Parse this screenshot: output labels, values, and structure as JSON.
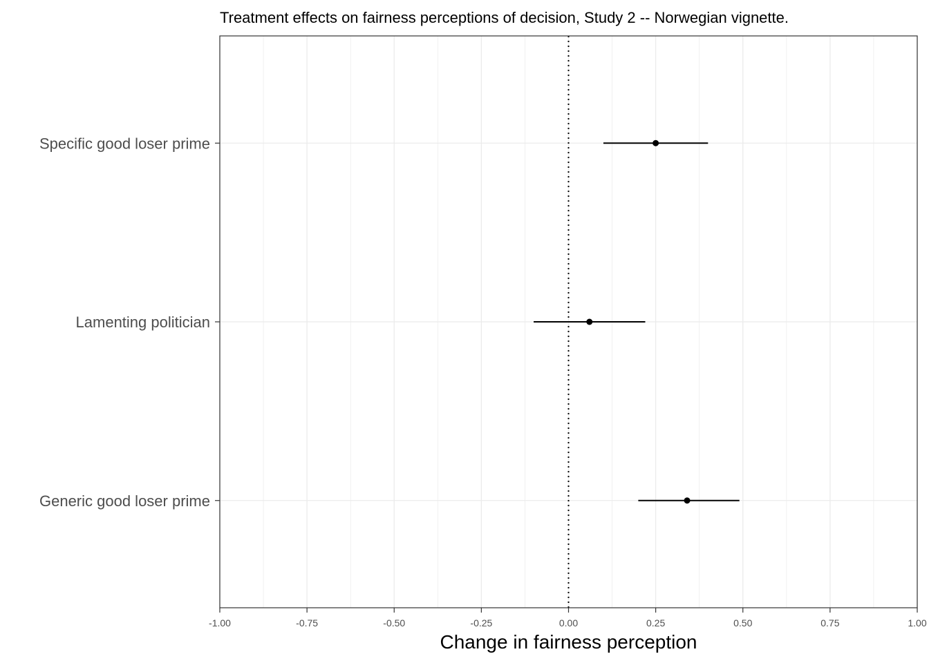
{
  "chart_data": {
    "type": "scatter",
    "title": "Treatment effects on fairness perceptions of decision, Study 2 -- Norwegian vignette.",
    "xlabel": "Change in fairness perception",
    "ylabel": "",
    "xlim": [
      -1.0,
      1.0
    ],
    "xticks": [
      -1.0,
      -0.75,
      -0.5,
      -0.25,
      0.0,
      0.25,
      0.5,
      0.75,
      1.0
    ],
    "xtick_labels": [
      "-1.00",
      "-0.75",
      "-0.50",
      "-0.25",
      "0.00",
      "0.25",
      "0.50",
      "0.75",
      "1.00"
    ],
    "categories": [
      "Specific good loser prime",
      "Lamenting politician",
      "Generic good loser prime"
    ],
    "estimates": [
      0.25,
      0.06,
      0.34
    ],
    "ci_low": [
      0.1,
      -0.1,
      0.2
    ],
    "ci_high": [
      0.4,
      0.22,
      0.49
    ],
    "reference_line": 0.0,
    "grid": true,
    "legend": "none"
  },
  "colors": {
    "point": "#000000",
    "grid": "#ebebeb",
    "axis": "#333333",
    "text": "#4d4d4d"
  }
}
